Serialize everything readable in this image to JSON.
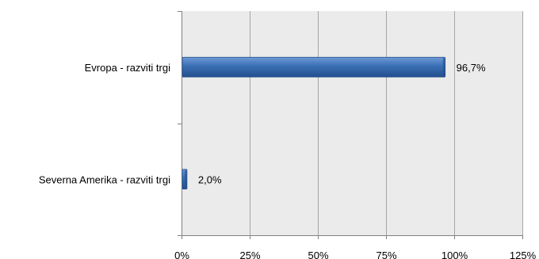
{
  "chart_data": {
    "type": "bar",
    "orientation": "horizontal",
    "categories": [
      "Evropa - razviti trgi",
      "Severna Amerika - razviti trgi"
    ],
    "values": [
      96.7,
      2.0
    ],
    "value_labels": [
      "96,7%",
      "2,0%"
    ],
    "xlim": [
      0,
      125
    ],
    "xticks": [
      0,
      25,
      50,
      75,
      100,
      125
    ],
    "xtick_labels": [
      "0%",
      "25%",
      "50%",
      "75%",
      "100%",
      "125%"
    ],
    "grid": true,
    "legend": "none",
    "colors": {
      "bar": "#3a6fb5",
      "bar_light": "#6f9ad6",
      "bar_dark": "#244f8c",
      "plot_bg": "#ebebeb",
      "grid": "#a6a6a6"
    }
  }
}
